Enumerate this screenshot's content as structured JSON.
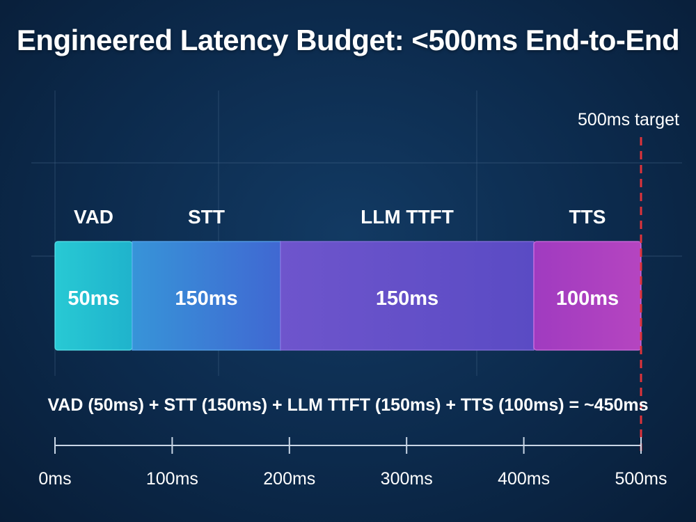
{
  "title": "Engineered Latency Budget: <500ms End-to-End",
  "chart_data": {
    "type": "bar",
    "orientation": "horizontal-stacked",
    "categories": [
      "VAD",
      "STT",
      "LLM TTFT",
      "TTS"
    ],
    "value_labels": [
      "50ms",
      "150ms",
      "150ms",
      "100ms"
    ],
    "values": [
      50,
      150,
      150,
      100
    ],
    "colors": [
      "#22c1cf",
      "#3a7fd6",
      "#6a4fc8",
      "#a83fbf"
    ],
    "xlim": [
      0,
      500
    ],
    "x_ticks": [
      0,
      100,
      200,
      300,
      400,
      500
    ],
    "x_tick_labels": [
      "0ms",
      "100ms",
      "200ms",
      "300ms",
      "400ms",
      "500ms"
    ],
    "target": {
      "value": 500,
      "label": "500ms target",
      "color": "#e0333a"
    },
    "annotation": "VAD (50ms) + STT (150ms) + LLM TTFT (150ms) + TTS (100ms) = ~450ms",
    "grid": true
  }
}
